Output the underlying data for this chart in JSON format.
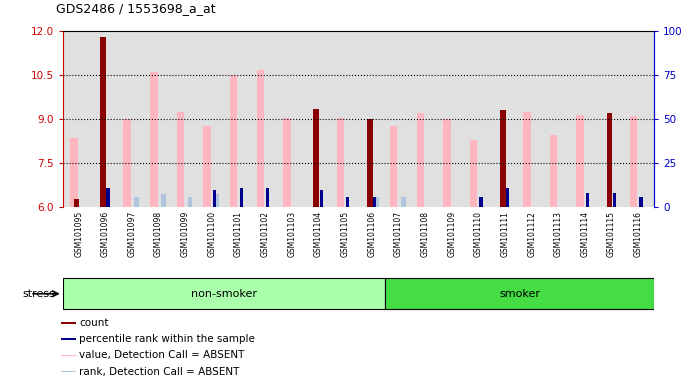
{
  "title": "GDS2486 / 1553698_a_at",
  "samples": [
    "GSM101095",
    "GSM101096",
    "GSM101097",
    "GSM101098",
    "GSM101099",
    "GSM101100",
    "GSM101101",
    "GSM101102",
    "GSM101103",
    "GSM101104",
    "GSM101105",
    "GSM101106",
    "GSM101107",
    "GSM101108",
    "GSM101109",
    "GSM101110",
    "GSM101111",
    "GSM101112",
    "GSM101113",
    "GSM101114",
    "GSM101115",
    "GSM101116"
  ],
  "count_values": [
    6.3,
    11.8,
    6.0,
    6.0,
    6.0,
    6.0,
    6.0,
    6.0,
    6.0,
    9.35,
    6.0,
    9.0,
    6.0,
    6.0,
    6.0,
    6.0,
    9.3,
    6.0,
    6.0,
    6.0,
    9.2,
    6.0
  ],
  "percentile_rank": [
    6.0,
    6.65,
    6.0,
    6.0,
    6.0,
    6.6,
    6.65,
    6.65,
    6.0,
    6.6,
    6.35,
    6.35,
    6.0,
    6.0,
    6.0,
    6.35,
    6.65,
    6.0,
    6.0,
    6.5,
    6.5,
    6.35
  ],
  "absent_value": [
    8.35,
    6.0,
    9.0,
    10.6,
    9.25,
    8.75,
    10.5,
    10.65,
    9.05,
    6.0,
    9.05,
    6.0,
    8.75,
    9.2,
    9.0,
    8.3,
    6.0,
    9.25,
    8.45,
    9.15,
    6.0,
    9.1
  ],
  "absent_rank": [
    6.0,
    6.0,
    6.35,
    6.45,
    6.35,
    6.45,
    6.0,
    6.0,
    6.0,
    6.0,
    6.0,
    6.35,
    6.35,
    6.0,
    6.0,
    6.0,
    6.0,
    6.0,
    6.0,
    6.0,
    6.0,
    6.0
  ],
  "non_smoker_count": 12,
  "smoker_count": 10,
  "ylim_left": [
    6.0,
    12.0
  ],
  "ylim_right": [
    0,
    100
  ],
  "yticks_left": [
    6,
    7.5,
    9,
    10.5,
    12
  ],
  "yticks_right": [
    0,
    25,
    50,
    75,
    100
  ],
  "color_count": "#8B0000",
  "color_percentile": "#00008B",
  "color_absent_value": "#FFB6C1",
  "color_absent_rank": "#B0C4DE",
  "bg_plot": "#E0E0E0",
  "bg_nonsmoker": "#AAFFAA",
  "bg_smoker": "#44DD44",
  "color_axis_left": "#CC0000",
  "color_axis_right": "#0000CC",
  "dotted_grid": [
    7.5,
    9.0,
    10.5
  ]
}
